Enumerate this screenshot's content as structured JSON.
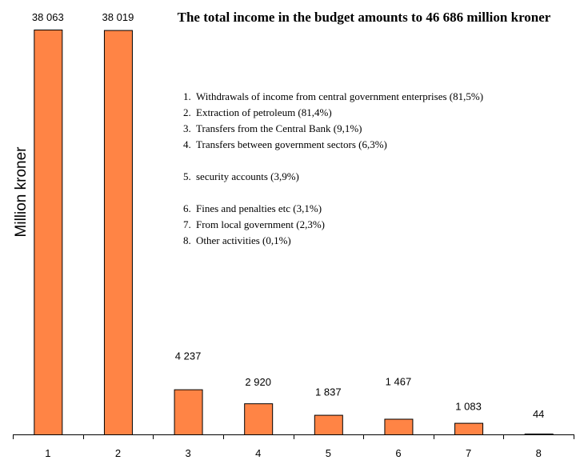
{
  "chart_data": {
    "type": "bar",
    "title": "The total income in the budget amounts to 46 686 million kroner",
    "ylabel": "Million kroner",
    "xlabel": "",
    "categories": [
      "1",
      "2",
      "3",
      "4",
      "5",
      "6",
      "7",
      "8"
    ],
    "values": [
      38063,
      38019,
      4237,
      2920,
      1837,
      1467,
      1083,
      44
    ],
    "value_labels": [
      "38 063",
      "38 019",
      "4 237",
      "2 920",
      "1 837",
      "1 467",
      "1 083",
      "44"
    ],
    "ylim": [
      0,
      38063
    ],
    "grid": false,
    "bar_color": "#FF8445",
    "legend": [
      "1.  Withdrawals of income from central government enterprises (81,5%)",
      "2.  Extraction of petroleum (81,4%)",
      "3.  Transfers from the Central Bank (9,1%)",
      "4.  Transfers between government sectors (6,3%)",
      "5.  security accounts (3,9%)",
      "6.  Fines and penalties etc (3,1%)",
      "7.  From local government (2,3%)",
      "8.  Other activities (0,1%)"
    ]
  }
}
